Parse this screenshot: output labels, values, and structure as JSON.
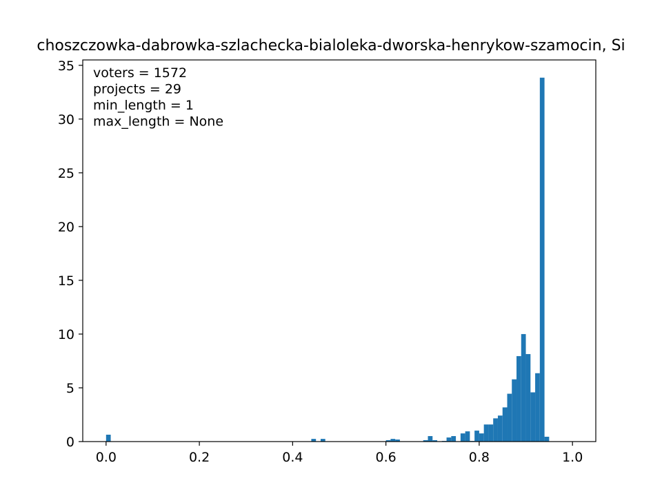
{
  "chart_data": {
    "type": "bar",
    "title": "choszczowka-dabrowka-szlachecka-bialoleka-dworska-henrykow-szamocin, Si",
    "xlabel": "",
    "ylabel": "",
    "xlim": [
      -0.05,
      1.05
    ],
    "ylim": [
      0,
      35.5
    ],
    "xticks": [
      0.0,
      0.2,
      0.4,
      0.6,
      0.8,
      1.0
    ],
    "xtick_labels": [
      "0.0",
      "0.2",
      "0.4",
      "0.6",
      "0.8",
      "1.0"
    ],
    "yticks": [
      0,
      5,
      10,
      15,
      20,
      25,
      30,
      35
    ],
    "ytick_labels": [
      "0",
      "5",
      "10",
      "15",
      "20",
      "25",
      "30",
      "35"
    ],
    "grid": false,
    "bar_color": "#1f77b4",
    "bin_width": 0.01,
    "annotations": [
      "voters = 1572",
      "projects = 29",
      "min_length = 1",
      "max_length = None"
    ],
    "bins": [
      {
        "x": 0.0,
        "y": 0.64
      },
      {
        "x": 0.44,
        "y": 0.25
      },
      {
        "x": 0.46,
        "y": 0.25
      },
      {
        "x": 0.6,
        "y": 0.13
      },
      {
        "x": 0.61,
        "y": 0.25
      },
      {
        "x": 0.62,
        "y": 0.19
      },
      {
        "x": 0.68,
        "y": 0.13
      },
      {
        "x": 0.69,
        "y": 0.51
      },
      {
        "x": 0.7,
        "y": 0.13
      },
      {
        "x": 0.72,
        "y": 0.06
      },
      {
        "x": 0.73,
        "y": 0.38
      },
      {
        "x": 0.74,
        "y": 0.51
      },
      {
        "x": 0.76,
        "y": 0.76
      },
      {
        "x": 0.77,
        "y": 0.95
      },
      {
        "x": 0.78,
        "y": 0.06
      },
      {
        "x": 0.79,
        "y": 1.02
      },
      {
        "x": 0.8,
        "y": 0.76
      },
      {
        "x": 0.81,
        "y": 1.59
      },
      {
        "x": 0.82,
        "y": 1.59
      },
      {
        "x": 0.83,
        "y": 2.16
      },
      {
        "x": 0.84,
        "y": 2.42
      },
      {
        "x": 0.85,
        "y": 3.18
      },
      {
        "x": 0.86,
        "y": 4.45
      },
      {
        "x": 0.87,
        "y": 5.79
      },
      {
        "x": 0.88,
        "y": 7.95
      },
      {
        "x": 0.89,
        "y": 10.0
      },
      {
        "x": 0.9,
        "y": 8.14
      },
      {
        "x": 0.91,
        "y": 4.58
      },
      {
        "x": 0.92,
        "y": 6.36
      },
      {
        "x": 0.93,
        "y": 33.85
      },
      {
        "x": 0.94,
        "y": 0.45
      }
    ]
  }
}
